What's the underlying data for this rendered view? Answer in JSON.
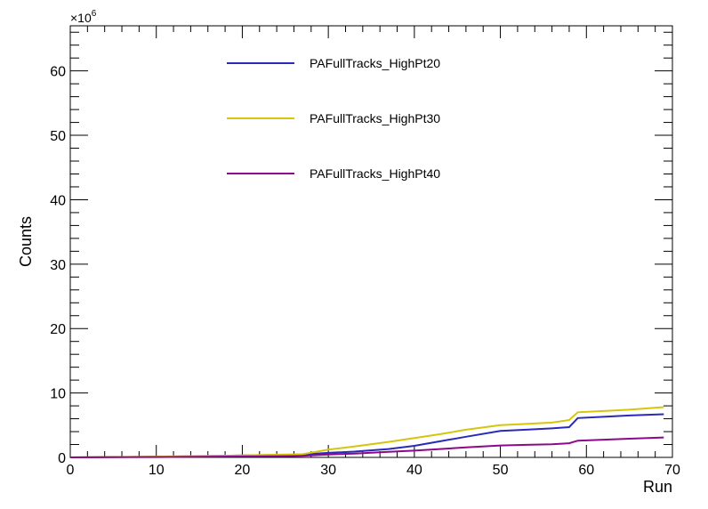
{
  "chart_data": {
    "type": "line",
    "title": "",
    "xlabel": "Run",
    "ylabel": "Counts",
    "y_multiplier_label": "×10",
    "y_multiplier_exponent": "6",
    "xlim": [
      0,
      70
    ],
    "ylim": [
      0,
      67
    ],
    "x_ticks": [
      "0",
      "10",
      "20",
      "30",
      "40",
      "50",
      "60",
      "70"
    ],
    "y_ticks": [
      "0",
      "10",
      "20",
      "30",
      "40",
      "50",
      "60"
    ],
    "grid": false,
    "legend_position": "top-center",
    "series": [
      {
        "name": "PAFullTracks_HighPt20",
        "color": "#2a2ab8",
        "points": [
          [
            0,
            0
          ],
          [
            5,
            0.05
          ],
          [
            10,
            0.1
          ],
          [
            15,
            0.2
          ],
          [
            20,
            0.3
          ],
          [
            25,
            0.4
          ],
          [
            27,
            0.45
          ],
          [
            30,
            0.7
          ],
          [
            33,
            0.9
          ],
          [
            37,
            1.3
          ],
          [
            40,
            1.8
          ],
          [
            43,
            2.5
          ],
          [
            46,
            3.2
          ],
          [
            50,
            4.1
          ],
          [
            53,
            4.3
          ],
          [
            56,
            4.5
          ],
          [
            58,
            4.7
          ],
          [
            59,
            6.1
          ],
          [
            62,
            6.3
          ],
          [
            65,
            6.5
          ],
          [
            69,
            6.7
          ]
        ]
      },
      {
        "name": "PAFullTracks_HighPt30",
        "color": "#d4c60e",
        "points": [
          [
            0,
            0
          ],
          [
            5,
            0.05
          ],
          [
            10,
            0.12
          ],
          [
            15,
            0.22
          ],
          [
            20,
            0.3
          ],
          [
            25,
            0.45
          ],
          [
            27,
            0.5
          ],
          [
            30,
            1.2
          ],
          [
            33,
            1.7
          ],
          [
            37,
            2.4
          ],
          [
            40,
            3.0
          ],
          [
            43,
            3.6
          ],
          [
            46,
            4.3
          ],
          [
            50,
            5.0
          ],
          [
            53,
            5.2
          ],
          [
            56,
            5.4
          ],
          [
            58,
            5.8
          ],
          [
            59,
            7.0
          ],
          [
            62,
            7.2
          ],
          [
            65,
            7.4
          ],
          [
            69,
            7.8
          ]
        ]
      },
      {
        "name": "PAFullTracks_HighPt40",
        "color": "#8b0a8b",
        "points": [
          [
            0,
            0
          ],
          [
            5,
            0.03
          ],
          [
            10,
            0.06
          ],
          [
            15,
            0.1
          ],
          [
            20,
            0.15
          ],
          [
            25,
            0.2
          ],
          [
            27,
            0.25
          ],
          [
            30,
            0.45
          ],
          [
            33,
            0.6
          ],
          [
            37,
            0.85
          ],
          [
            40,
            1.05
          ],
          [
            43,
            1.3
          ],
          [
            46,
            1.55
          ],
          [
            50,
            1.85
          ],
          [
            53,
            1.95
          ],
          [
            56,
            2.05
          ],
          [
            58,
            2.2
          ],
          [
            59,
            2.6
          ],
          [
            62,
            2.75
          ],
          [
            65,
            2.9
          ],
          [
            69,
            3.1
          ]
        ]
      }
    ]
  }
}
